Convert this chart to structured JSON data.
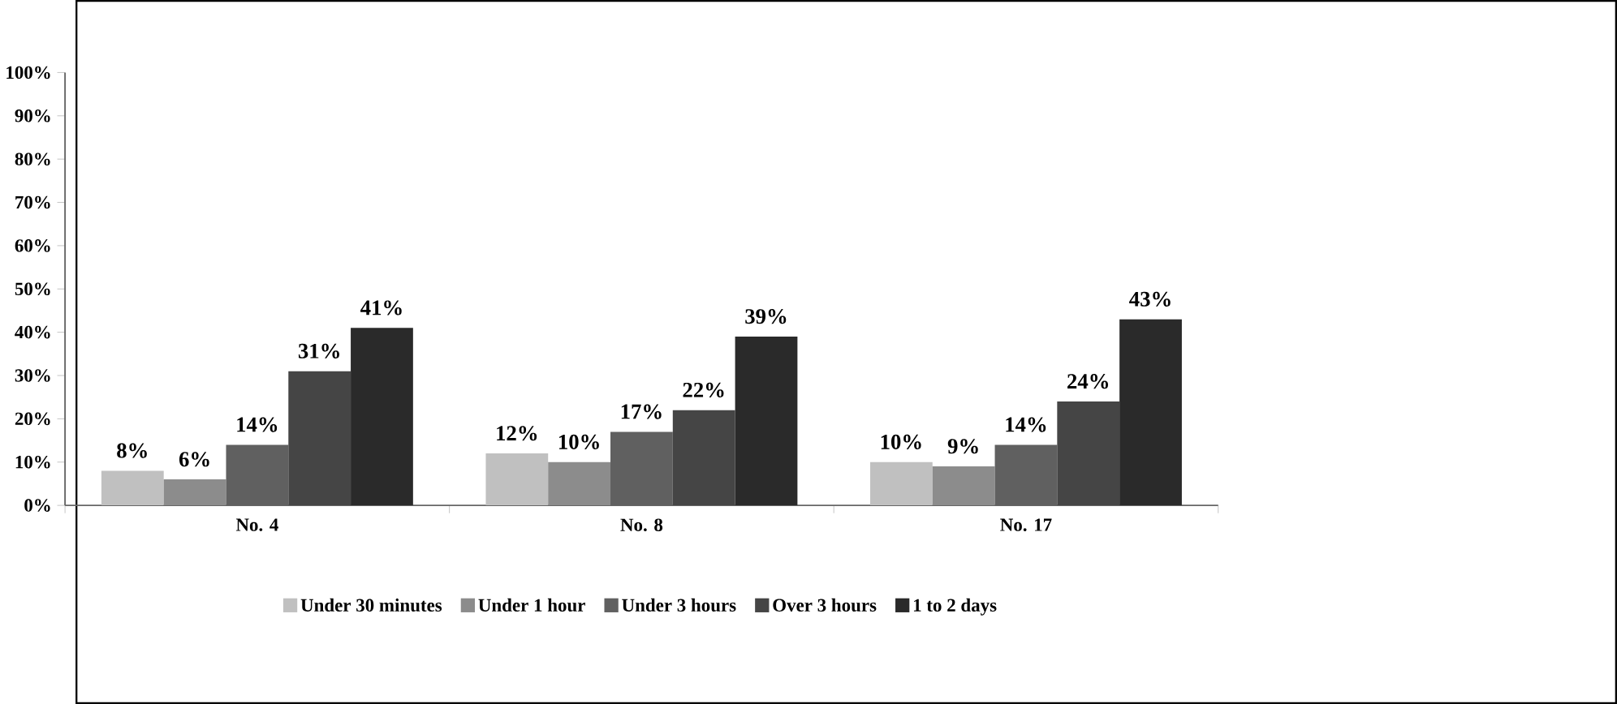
{
  "chart_data": {
    "type": "bar",
    "categories": [
      "No. 4",
      "No. 8",
      "No. 17"
    ],
    "series": [
      {
        "name": "Under 30 minutes",
        "color": "#c0c0c0",
        "values": [
          8,
          12,
          10
        ],
        "value_labels": [
          "8%",
          "12%",
          "10%"
        ]
      },
      {
        "name": "Under 1 hour",
        "color": "#8c8c8c",
        "values": [
          6,
          10,
          9
        ],
        "value_labels": [
          "6%",
          "10%",
          "9%"
        ]
      },
      {
        "name": "Under 3 hours",
        "color": "#606060",
        "values": [
          14,
          17,
          14
        ],
        "value_labels": [
          "14%",
          "17%",
          "14%"
        ]
      },
      {
        "name": "Over 3 hours",
        "color": "#454545",
        "values": [
          31,
          22,
          24
        ],
        "value_labels": [
          "31%",
          "22%",
          "24%"
        ]
      },
      {
        "name": "1 to 2 days",
        "color": "#2a2a2a",
        "values": [
          41,
          39,
          43
        ],
        "value_labels": [
          "41%",
          "39%",
          "43%"
        ]
      }
    ],
    "ylim": [
      0,
      100
    ],
    "yticks": [
      {
        "value": 0,
        "label": "0%"
      },
      {
        "value": 10,
        "label": "10%"
      },
      {
        "value": 20,
        "label": "20%"
      },
      {
        "value": 30,
        "label": "30%"
      },
      {
        "value": 40,
        "label": "40%"
      },
      {
        "value": 50,
        "label": "50%"
      },
      {
        "value": 60,
        "label": "60%"
      },
      {
        "value": 70,
        "label": "70%"
      },
      {
        "value": 80,
        "label": "80%"
      },
      {
        "value": 90,
        "label": "90%"
      },
      {
        "value": 100,
        "label": "100%"
      }
    ],
    "grid": false,
    "legend": "bottom"
  }
}
